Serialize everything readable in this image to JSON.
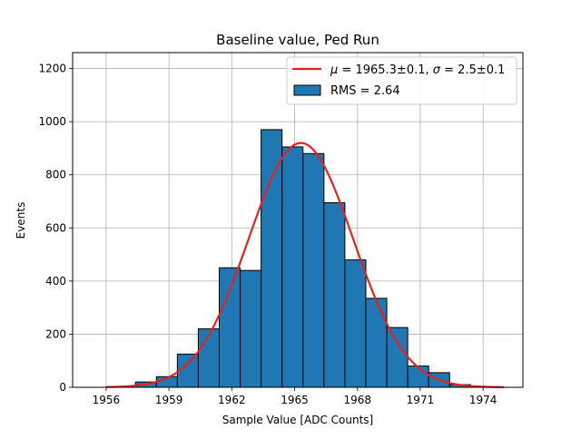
{
  "chart_data": {
    "type": "bar",
    "title": "Baseline value, Ped Run",
    "xlabel": "Sample Value [ADC Counts]",
    "ylabel": "Events",
    "xlim": [
      1954.4,
      1975.9
    ],
    "ylim": [
      0,
      1260
    ],
    "xticks": [
      1956,
      1959,
      1962,
      1965,
      1968,
      1971,
      1974
    ],
    "yticks": [
      0,
      200,
      400,
      600,
      800,
      1000,
      1200
    ],
    "grid": true,
    "legend_position": "top-right",
    "bin_width": 1,
    "histogram": {
      "name": "RMS = 2.64",
      "color": "#1f77b4",
      "edgecolor": "#000000",
      "bin_left_edges": [
        1957.4,
        1958.4,
        1959.4,
        1960.4,
        1961.4,
        1962.4,
        1963.4,
        1964.4,
        1965.4,
        1966.4,
        1967.4,
        1968.4,
        1969.4,
        1970.4,
        1971.4,
        1972.4
      ],
      "values": [
        20,
        40,
        125,
        220,
        450,
        440,
        970,
        905,
        880,
        695,
        480,
        335,
        225,
        80,
        55,
        10
      ]
    },
    "fit": {
      "name": "μ = 1965.3±0.1, σ = 2.5±0.1",
      "name_parts": {
        "mu_symbol": "μ",
        "mu_text": " = 1965.3±0.1, ",
        "sigma_symbol": "σ",
        "sigma_text": " = 2.5±0.1"
      },
      "color": "#e8211e",
      "mu": 1965.3,
      "sigma": 2.5,
      "amplitude": 920,
      "x_range": [
        1956,
        1975
      ]
    }
  }
}
